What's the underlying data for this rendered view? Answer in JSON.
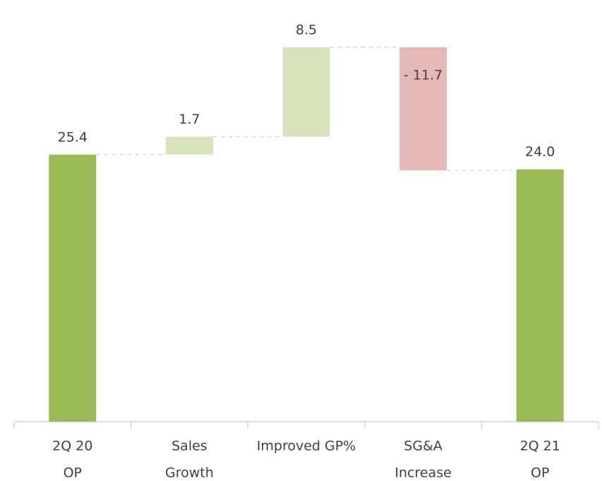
{
  "chart_data": {
    "type": "waterfall",
    "categories": [
      [
        "2Q 20",
        "OP"
      ],
      [
        "Sales",
        "Growth"
      ],
      [
        "Improved GP%"
      ],
      [
        "SG&A",
        "Increase"
      ],
      [
        "2Q 21",
        "OP"
      ]
    ],
    "values": [
      25.4,
      1.7,
      8.5,
      -11.7,
      24.0
    ],
    "value_labels": [
      "25.4",
      "1.7",
      "8.5",
      "- 11.7",
      "24.0"
    ],
    "measures": [
      "absolute",
      "relative",
      "relative",
      "relative",
      "absolute"
    ],
    "total_color": "#9bbb59",
    "increase_color": "#d7e4bd",
    "decrease_color": "#e6b9b8",
    "connector_color": "#d9d9d9"
  }
}
